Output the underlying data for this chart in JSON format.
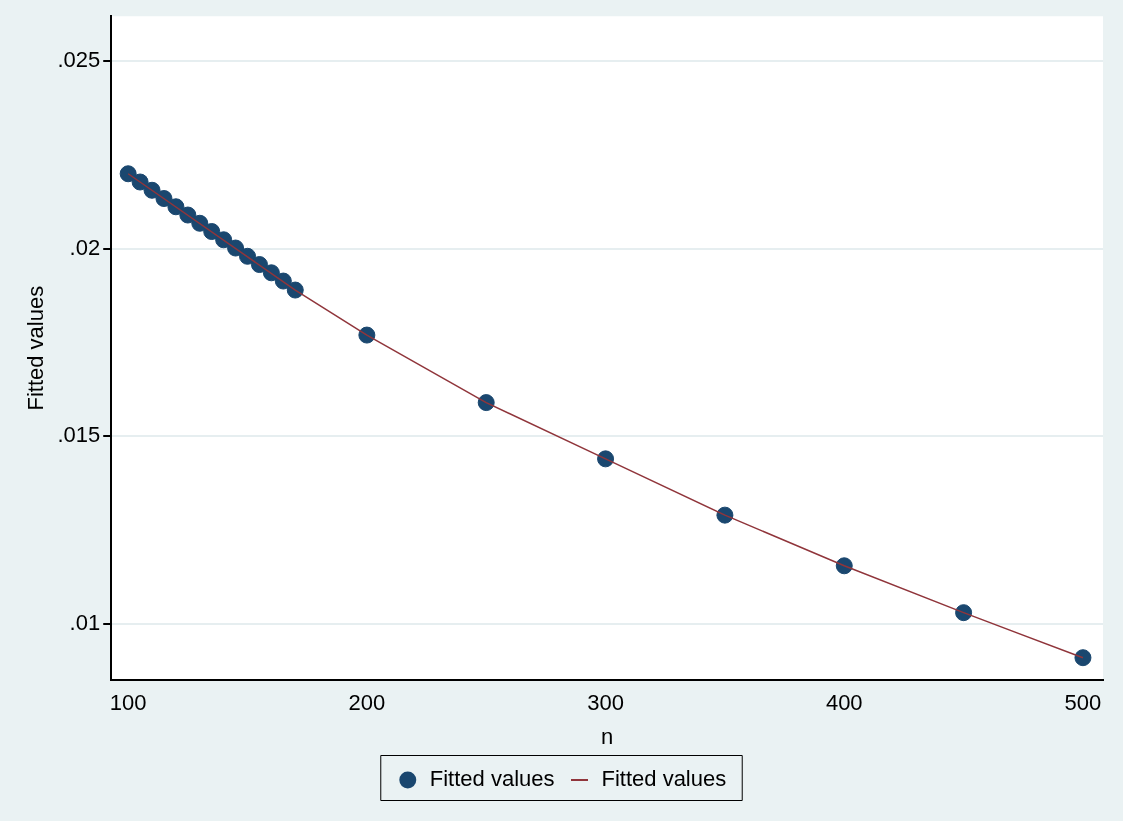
{
  "chart_data": {
    "type": "scatter",
    "xlabel": "n",
    "ylabel": "Fitted values",
    "xlim": [
      92.9,
      508.4
    ],
    "xticks": [
      100,
      200,
      300,
      400,
      500
    ],
    "ylim": [
      0.0085,
      0.0262
    ],
    "yticks": [
      {
        "value": 0.01,
        "label": ".01"
      },
      {
        "value": 0.015,
        "label": ".015"
      },
      {
        "value": 0.02,
        "label": ".02"
      },
      {
        "value": 0.025,
        "label": ".025"
      }
    ],
    "grid": "y",
    "legend": "bottom",
    "series": [
      {
        "name": "Fitted values",
        "color": "#1a476f",
        "marker": "circle",
        "x": [
          100,
          105,
          110,
          115,
          120,
          125,
          130,
          135,
          140,
          145,
          150,
          155,
          160,
          165,
          170,
          200,
          250,
          300,
          350,
          400,
          450,
          500
        ],
        "values": [
          0.022,
          0.02178,
          0.02156,
          0.02134,
          0.02112,
          0.0209,
          0.02068,
          0.02046,
          0.02024,
          0.02002,
          0.0198,
          0.01958,
          0.01936,
          0.01914,
          0.0189,
          0.0177,
          0.0159,
          0.0144,
          0.0129,
          0.01155,
          0.0103,
          0.0091
        ]
      },
      {
        "name": "Fitted values",
        "type": "line",
        "color": "#90353b",
        "line_style": "solid",
        "x": [
          100,
          170,
          200,
          250,
          300,
          350,
          400,
          450,
          500
        ],
        "values": [
          0.022,
          0.0189,
          0.0177,
          0.0159,
          0.0144,
          0.0129,
          0.01155,
          0.0103,
          0.0091
        ]
      }
    ]
  }
}
